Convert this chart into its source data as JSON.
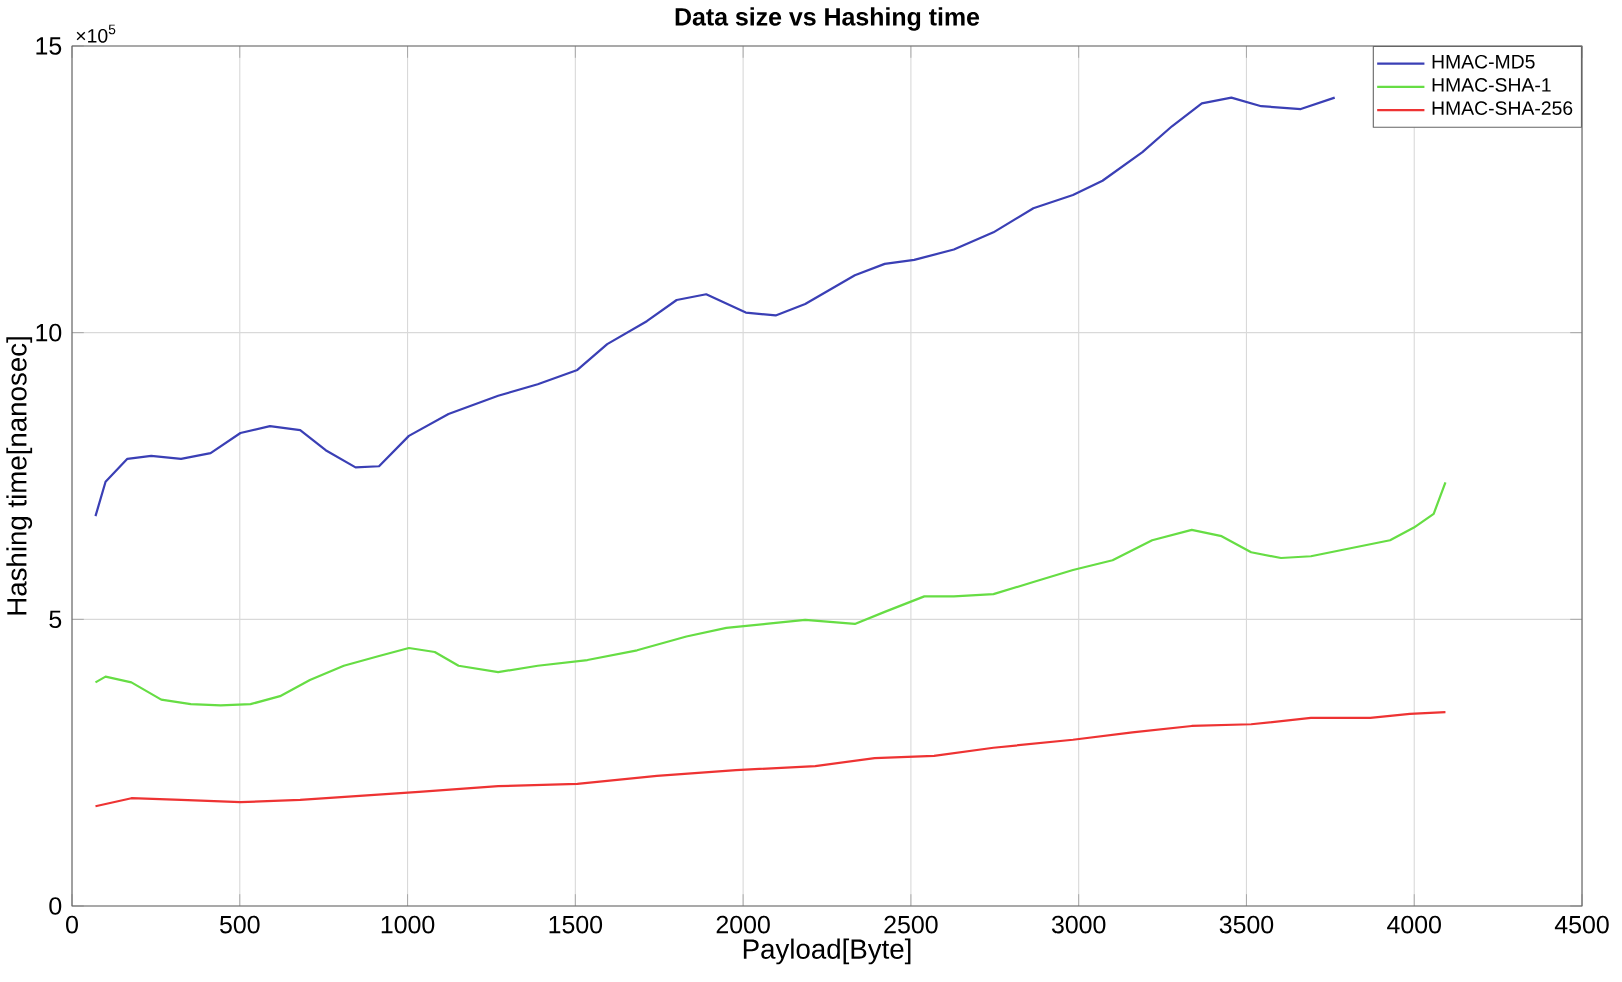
{
  "chart_data": {
    "type": "line",
    "title": "Data size vs Hashing time",
    "xlabel": "Payload[Byte]",
    "ylabel": "Hashing time[nanosec]",
    "annotations": [
      "×10$^{5}$"
    ],
    "xlim": [
      0,
      4500
    ],
    "xticks": [
      0,
      500,
      1000,
      1500,
      2000,
      2500,
      3000,
      3500,
      4000,
      4500
    ],
    "ylim": [
      0,
      15
    ],
    "yticks": [
      0,
      5,
      10,
      15
    ],
    "grid": true,
    "legend": "top right",
    "series": [
      {
        "name": "HMAC-MD5",
        "color": "#3a3fb5",
        "x": [
          70,
          100,
          165,
          236,
          325,
          413,
          502,
          590,
          680,
          756,
          845,
          915,
          1004,
          1122,
          1270,
          1388,
          1506,
          1595,
          1713,
          1802,
          1890,
          2008,
          2097,
          2185,
          2333,
          2422,
          2510,
          2628,
          2746,
          2865,
          2983,
          3071,
          3190,
          3278,
          3367,
          3455,
          3544,
          3662,
          3763
        ],
        "values": [
          6.8,
          7.4,
          7.8,
          7.85,
          7.8,
          7.9,
          8.25,
          8.37,
          8.3,
          7.95,
          7.65,
          7.67,
          8.2,
          8.58,
          8.9,
          9.1,
          9.35,
          9.8,
          10.2,
          10.57,
          10.67,
          10.35,
          10.3,
          10.5,
          11.0,
          11.2,
          11.27,
          11.45,
          11.75,
          12.17,
          12.4,
          12.65,
          13.15,
          13.6,
          14.0,
          14.1,
          13.95,
          13.9,
          14.1
        ]
      },
      {
        "name": "HMAC-SHA-1",
        "color": "#66dd44",
        "x": [
          70,
          100,
          177,
          266,
          354,
          443,
          532,
          620,
          709,
          810,
          915,
          1004,
          1081,
          1152,
          1270,
          1388,
          1536,
          1684,
          1831,
          1950,
          2068,
          2185,
          2333,
          2422,
          2540,
          2628,
          2746,
          2865,
          2983,
          3101,
          3219,
          3337,
          3426,
          3514,
          3603,
          3692,
          3810,
          3928,
          3999,
          4058,
          4093
        ],
        "values": [
          3.9,
          4.0,
          3.9,
          3.6,
          3.52,
          3.5,
          3.52,
          3.66,
          3.94,
          4.19,
          4.36,
          4.5,
          4.43,
          4.19,
          4.08,
          4.19,
          4.29,
          4.46,
          4.7,
          4.85,
          4.92,
          4.99,
          4.92,
          5.13,
          5.4,
          5.4,
          5.44,
          5.65,
          5.86,
          6.03,
          6.38,
          6.56,
          6.45,
          6.17,
          6.07,
          6.1,
          6.24,
          6.38,
          6.6,
          6.84,
          7.39
        ]
      },
      {
        "name": "HMAC-SHA-256",
        "color": "#ee3333",
        "x": [
          70,
          177,
          325,
          502,
          680,
          857,
          1034,
          1270,
          1506,
          1743,
          1979,
          2215,
          2392,
          2569,
          2746,
          2983,
          3160,
          3337,
          3514,
          3692,
          3869,
          3987,
          4093
        ],
        "values": [
          1.74,
          1.88,
          1.85,
          1.81,
          1.85,
          1.92,
          1.99,
          2.09,
          2.13,
          2.27,
          2.37,
          2.44,
          2.58,
          2.62,
          2.76,
          2.9,
          3.03,
          3.14,
          3.17,
          3.28,
          3.28,
          3.35,
          3.38
        ]
      }
    ]
  }
}
